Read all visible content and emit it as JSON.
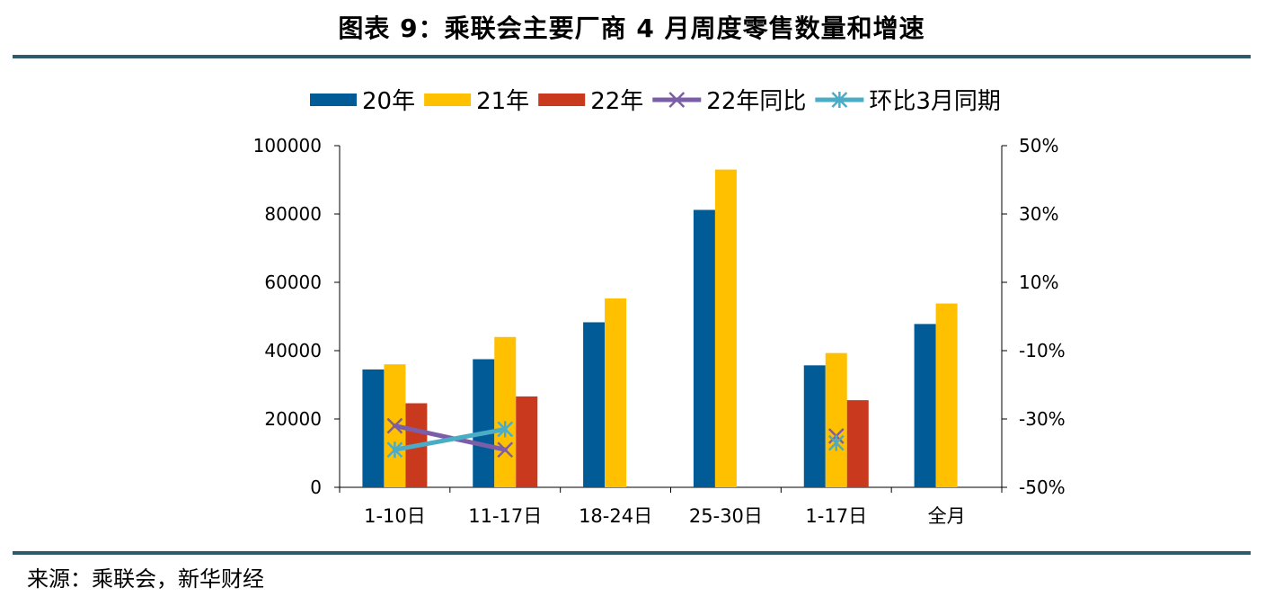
{
  "header": {
    "title": "图表 9：乘联会主要厂商 4 月周度零售数量和增速"
  },
  "footer": {
    "source": "来源：乘联会，新华财经"
  },
  "colors": {
    "s20": "#005b96",
    "s21": "#ffc000",
    "s22": "#c8391e",
    "yoy": "#7b5ea7",
    "mom": "#4bacc6",
    "rule": "#2e5a6b"
  },
  "chart_data": {
    "type": "bar",
    "title": "",
    "categories": [
      "1-10日",
      "11-17日",
      "18-24日",
      "25-30日",
      "1-17日",
      "全月"
    ],
    "series": [
      {
        "name": "20年",
        "kind": "bar",
        "axis": "left",
        "values": [
          34500,
          37500,
          48300,
          81200,
          35700,
          47800
        ]
      },
      {
        "name": "21年",
        "kind": "bar",
        "axis": "left",
        "values": [
          36000,
          44000,
          55300,
          93000,
          39300,
          53800
        ]
      },
      {
        "name": "22年",
        "kind": "bar",
        "axis": "left",
        "values": [
          24600,
          26600,
          null,
          null,
          25500,
          null
        ]
      },
      {
        "name": "22年同比",
        "kind": "line",
        "marker": "x",
        "axis": "right",
        "values": [
          -32,
          -39,
          null,
          null,
          -35,
          null
        ]
      },
      {
        "name": "环比3月同期",
        "kind": "line",
        "marker": "star",
        "axis": "right",
        "values": [
          -39,
          -33,
          null,
          null,
          -37,
          null
        ]
      }
    ],
    "y_left": {
      "min": 0,
      "max": 100000,
      "ticks": [
        "0",
        "20000",
        "40000",
        "60000",
        "80000",
        "100000"
      ]
    },
    "y_right": {
      "min": -50,
      "max": 50,
      "ticks": [
        "-50%",
        "-30%",
        "-10%",
        "10%",
        "30%",
        "50%"
      ]
    },
    "legend": {
      "position": "top"
    },
    "grid": false
  }
}
